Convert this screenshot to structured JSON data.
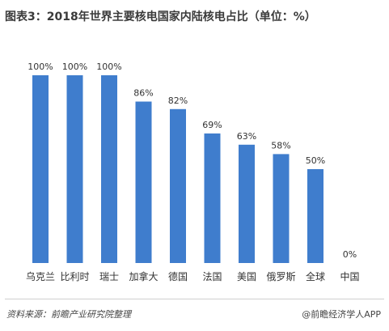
{
  "title": "图表3：2018年世界主要核电国家内陆核电占比（单位：%）",
  "source": "资料来源：前瞻产业研究院整理",
  "credit": "@前瞻经济学人APP",
  "colors": {
    "bar": "#3f7dcd",
    "label": "#333333"
  },
  "chart_data": {
    "type": "bar",
    "title": "图表3：2018年世界主要核电国家内陆核电占比（单位：%）",
    "xlabel": "",
    "ylabel": "",
    "ylim": [
      0,
      100
    ],
    "grid": false,
    "categories": [
      "乌克兰",
      "比利时",
      "瑞士",
      "加拿大",
      "德国",
      "法国",
      "美国",
      "俄罗斯",
      "全球",
      "中国"
    ],
    "values": [
      100,
      100,
      100,
      86,
      82,
      69,
      63,
      58,
      50,
      0
    ],
    "value_labels": [
      "100%",
      "100%",
      "100%",
      "86%",
      "82%",
      "69%",
      "63%",
      "58%",
      "50%",
      "0%"
    ]
  }
}
